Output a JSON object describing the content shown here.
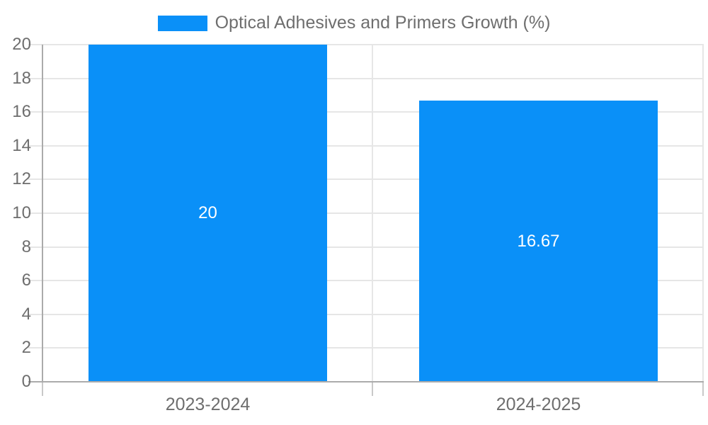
{
  "chart_data": {
    "type": "bar",
    "title": "",
    "xlabel": "",
    "ylabel": "",
    "categories": [
      "2023-2024",
      "2024-2025"
    ],
    "series": [
      {
        "name": "Optical Adhesives and Primers Growth (%)",
        "values": [
          20,
          16.67
        ]
      }
    ],
    "value_labels": [
      "20",
      "16.67"
    ],
    "ylim": [
      0,
      20
    ],
    "yticks": [
      0,
      2,
      4,
      6,
      8,
      10,
      12,
      14,
      16,
      18,
      20
    ],
    "ytick_labels": [
      "0",
      "2",
      "4",
      "6",
      "8",
      "10",
      "12",
      "14",
      "16",
      "18",
      "20"
    ],
    "grid": true,
    "legend_position": "top",
    "colors": {
      "bar": "#0a90f8",
      "grid": "#e6e6e6",
      "axis": "#ababab",
      "tick_stub": "#c9c9c9",
      "label_text": "#6e6e6e",
      "value_text": "#ffffff",
      "background": "#ffffff"
    }
  }
}
